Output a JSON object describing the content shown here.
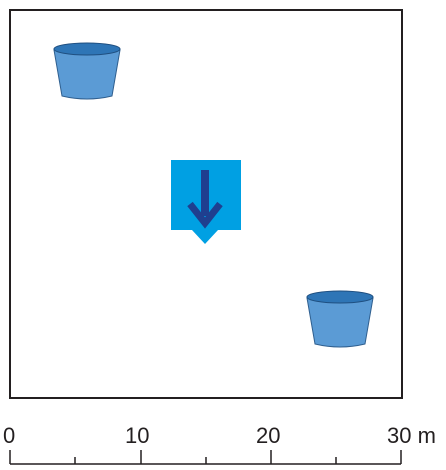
{
  "scale": {
    "ticks": [
      "0",
      "10",
      "20",
      "30 m"
    ]
  },
  "field": {
    "buckets": 2,
    "arrow": "down-arrow-icon"
  },
  "colors": {
    "border": "#231f20",
    "bucket_fill": "#5b9bd5",
    "bucket_rim": "#2e75b6",
    "marker_bg": "#00a0e3",
    "marker_arrow": "#1f3f8f"
  }
}
